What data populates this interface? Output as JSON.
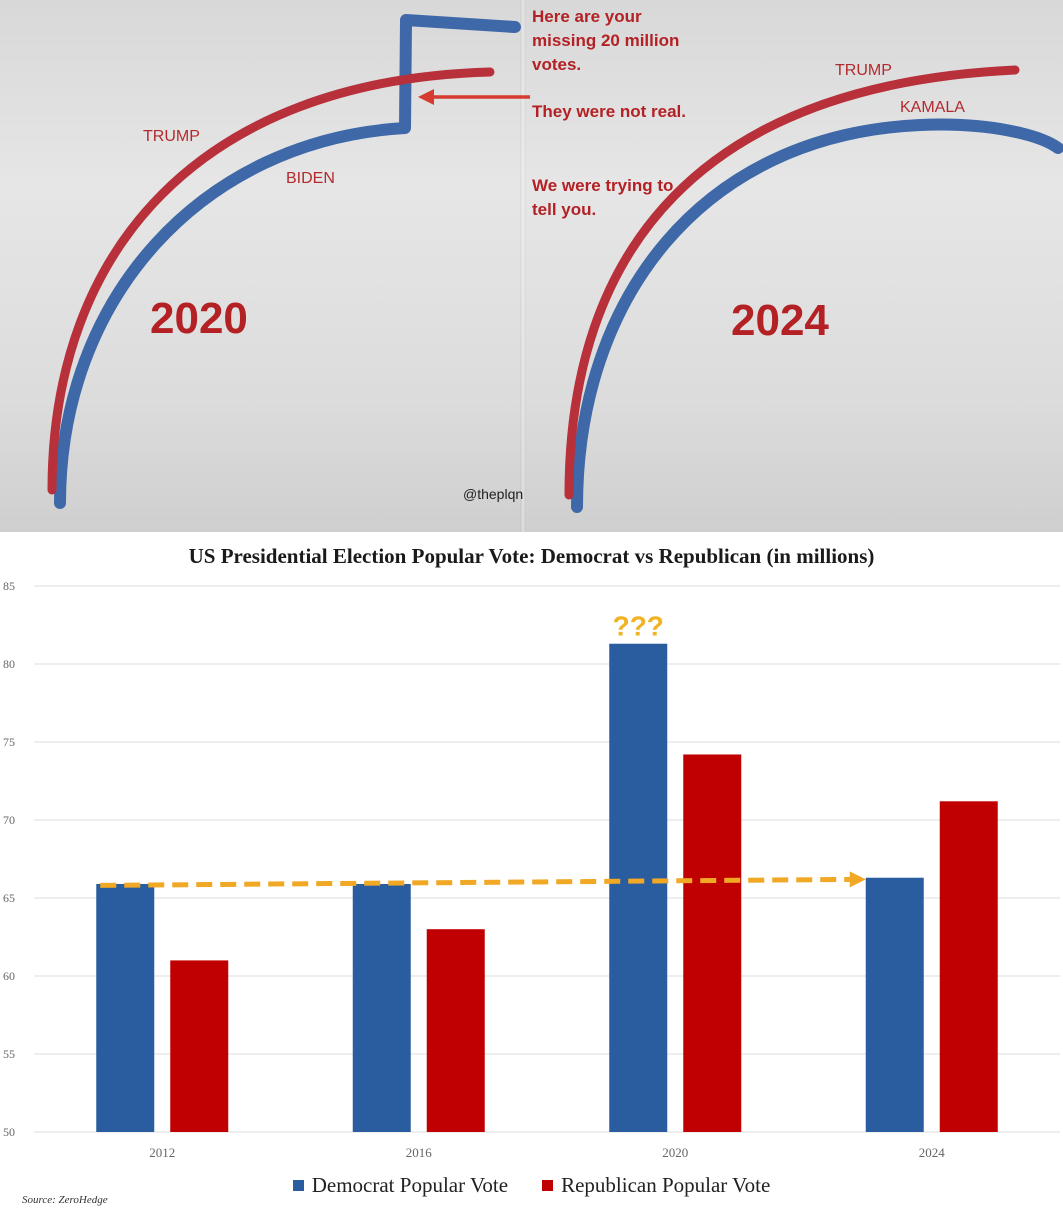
{
  "meme": {
    "panels": [
      {
        "year": "2020",
        "red_label": "TRUMP",
        "blue_label": "BIDEN"
      },
      {
        "year": "2024",
        "red_label": "TRUMP",
        "blue_label": "KAMALA"
      }
    ],
    "notes": [
      "Here are your missing 20 million votes.",
      "They were not real.",
      "We were trying to tell you."
    ],
    "handle": "@theplqn",
    "colors": {
      "red": "#b7303a",
      "blue": "#3e68a8",
      "arrow": "#d73a2f"
    }
  },
  "chart_data": {
    "type": "bar",
    "title": "US Presidential Election Popular Vote: Democrat vs Republican (in millions)",
    "categories": [
      "2012",
      "2016",
      "2020",
      "2024"
    ],
    "series": [
      {
        "name": "Democrat Popular Vote",
        "values": [
          65.9,
          65.9,
          81.3,
          66.3
        ],
        "color": "#2a5d9f"
      },
      {
        "name": "Republican Popular Vote",
        "values": [
          61.0,
          63.0,
          74.2,
          71.2
        ],
        "color": "#c00000"
      }
    ],
    "ylim": [
      50,
      85
    ],
    "yticks": [
      "50",
      "55",
      "60",
      "65",
      "70",
      "75",
      "80",
      "85"
    ],
    "grid": true,
    "legend_position": "bottom",
    "annotation": {
      "text": "???",
      "color": "#f0b323"
    },
    "trend_arrow": {
      "from": "2012",
      "to": "2024",
      "value": 66,
      "color": "#f0a825"
    },
    "source": "Source: ZeroHedge"
  }
}
